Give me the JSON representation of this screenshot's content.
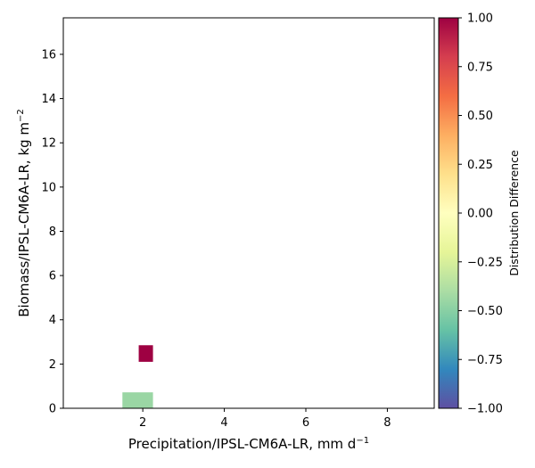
{
  "chart_data": {
    "type": "heatmap",
    "xlabel": "Precipitation/IPSL-CM6A-LR,  mm d",
    "xlabel_sup": "−1",
    "ylabel": "Biomass/IPSL-CM6A-LR,  kg m",
    "ylabel_sup": "−2",
    "xlim": [
      0.05,
      9.15
    ],
    "ylim": [
      0,
      17.65
    ],
    "xticks": [
      2,
      4,
      6,
      8
    ],
    "yticks": [
      0,
      2,
      4,
      6,
      8,
      10,
      12,
      14,
      16
    ],
    "cells": [
      {
        "x0": 1.5,
        "x1": 2.25,
        "y0": 0.0,
        "y1": 0.72,
        "value": -0.45
      },
      {
        "x0": 1.9,
        "x1": 2.25,
        "y0": 2.1,
        "y1": 2.85,
        "value": 1.0
      }
    ],
    "colorbar": {
      "label": "Distribution Difference",
      "range": [
        -1.0,
        1.0
      ],
      "ticks": [
        1.0,
        0.75,
        0.5,
        0.25,
        0.0,
        -0.25,
        -0.5,
        -0.75,
        -1.0
      ],
      "tick_labels": [
        "1.00",
        "0.75",
        "0.50",
        "0.25",
        "0.00",
        "−0.25",
        "−0.50",
        "−0.75",
        "−1.00"
      ],
      "colormap": "Spectral_r",
      "stops": [
        "#5e4fa2",
        "#3288bd",
        "#66c2a5",
        "#abdda4",
        "#e6f598",
        "#ffffbf",
        "#fee08b",
        "#fdae61",
        "#f46d43",
        "#d53e4f",
        "#9e0142"
      ]
    }
  }
}
